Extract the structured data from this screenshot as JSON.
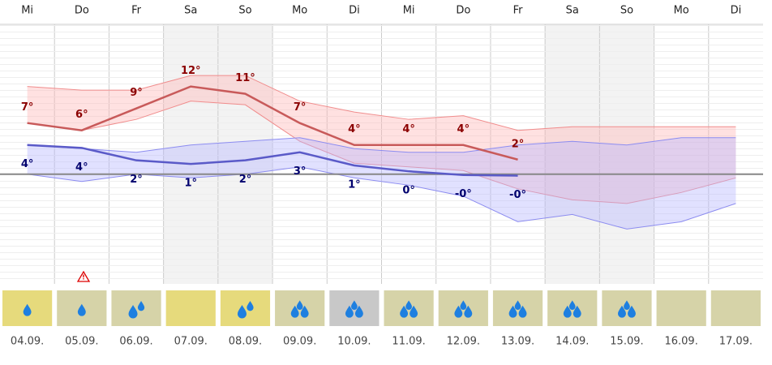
{
  "chart_data": {
    "type": "line",
    "weekdays": [
      "Mi",
      "Do",
      "Fr",
      "Sa",
      "So",
      "Mo",
      "Di",
      "Mi",
      "Do",
      "Fr",
      "Sa",
      "So",
      "Mo",
      "Di"
    ],
    "categories": [
      "04.09.",
      "05.09.",
      "06.09.",
      "07.09.",
      "08.09.",
      "09.09.",
      "10.09.",
      "11.09.",
      "12.09.",
      "13.09.",
      "14.09.",
      "15.09.",
      "16.09.",
      "17.09."
    ],
    "shaded": [
      false,
      false,
      false,
      true,
      true,
      false,
      false,
      false,
      false,
      false,
      true,
      true,
      false,
      false
    ],
    "ylim": [
      -15,
      20.5
    ],
    "series": [
      {
        "color": "#c85a5a",
        "label_color": "#8b0000",
        "band_fill": "#ffb4b4",
        "band_edge": "#f08c8c",
        "values": [
          7,
          6,
          9,
          12,
          11,
          7,
          4,
          4,
          4,
          2,
          null,
          null,
          null,
          null
        ],
        "value_labels": [
          "7°",
          "6°",
          "9°",
          "12°",
          "11°",
          "7°",
          "4°",
          "4°",
          "4°",
          "2°",
          null,
          null,
          null,
          null
        ],
        "range_upper": [
          12,
          11.5,
          11.5,
          13.5,
          13.5,
          10,
          8.5,
          7.5,
          8,
          6,
          6.5,
          6.5,
          6.5,
          6.5
        ],
        "range_lower": [
          7,
          6,
          7.5,
          10,
          9.5,
          4.5,
          1.5,
          1,
          0.5,
          -2,
          -3.5,
          -4,
          -2.5,
          -0.5
        ]
      },
      {
        "color": "#5a5ac8",
        "label_color": "#00006e",
        "band_fill": "#b4b4ff",
        "band_edge": "#8c8cf0",
        "values": [
          4,
          3.6,
          1.9,
          1.4,
          1.9,
          3,
          1.2,
          0.4,
          -0.1,
          -0.2,
          null,
          null,
          null,
          null
        ],
        "value_labels": [
          "4°",
          "4°",
          "2°",
          "1°",
          "2°",
          "3°",
          "1°",
          "0°",
          "-0°",
          "-0°",
          null,
          null,
          null,
          null
        ],
        "range_upper": [
          4,
          3.5,
          3,
          4,
          4.5,
          5,
          3.5,
          3,
          3,
          4,
          4.5,
          4,
          5,
          5
        ],
        "range_lower": [
          0,
          -1,
          0,
          -0.5,
          0,
          1,
          -0.5,
          -1.5,
          -3,
          -6.5,
          -5.5,
          -7.5,
          -6.5,
          -4
        ]
      }
    ],
    "precip_drops": [
      1,
      1,
      2,
      0,
      2,
      3,
      3,
      3,
      3,
      3,
      3,
      3,
      0,
      0
    ],
    "icon_colors": [
      "#e6da7c",
      "#d6d3a8",
      "#d6d3a8",
      "#e6da7c",
      "#e6da7c",
      "#d6d3a8",
      "#c8c8c8",
      "#d6d3a8",
      "#d6d3a8",
      "#d6d3a8",
      "#d6d3a8",
      "#d6d3a8",
      "#d6d3a8",
      "#d6d3a8"
    ]
  }
}
